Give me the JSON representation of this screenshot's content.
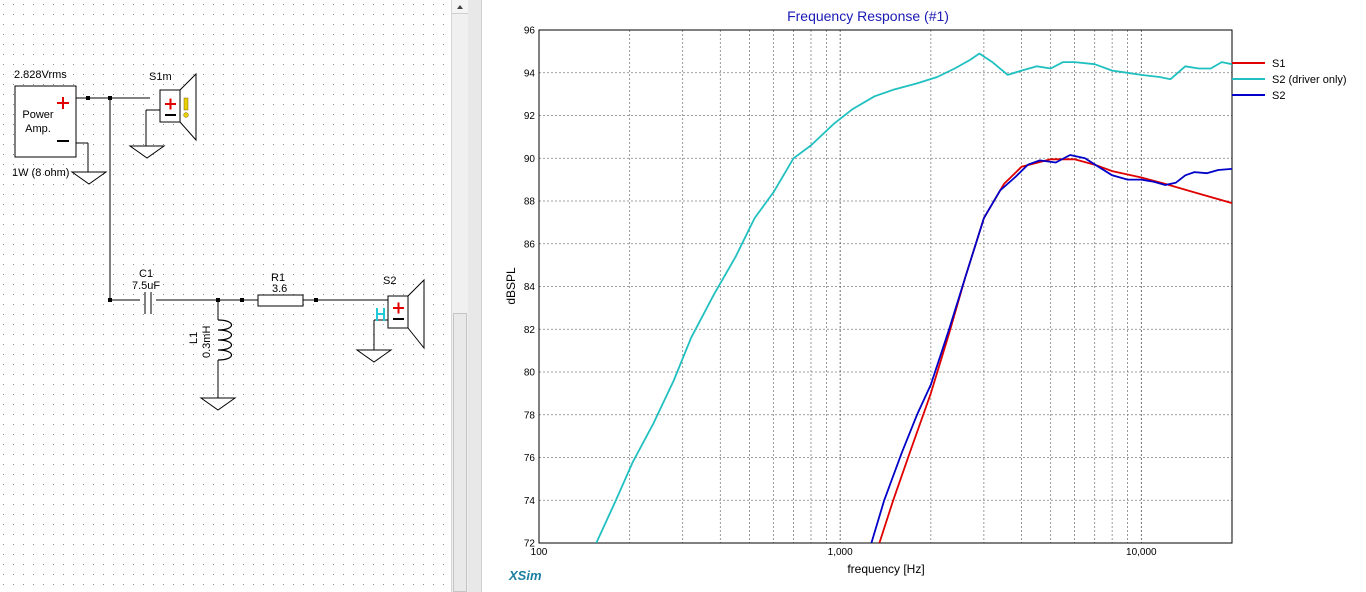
{
  "schematic": {
    "source_voltage": "2.828Vrms",
    "amp_line1": "Power",
    "amp_line2": "Amp.",
    "amp_rating": "1W (8 ohm)",
    "s1_label": "S1m",
    "s2_label": "S2",
    "c1_name": "C1",
    "c1_value": "7.5uF",
    "r1_name": "R1",
    "r1_value": "3.6",
    "l1_name": "L1",
    "l1_value": "0.3mH",
    "colors": {
      "grid_dot": "#8a8a8a",
      "wire": "#000000",
      "plus": "#e00000",
      "s2_mark": "#20c8d8",
      "s1_mark": "#e8d000"
    }
  },
  "footer": {
    "app_name": "XSim"
  },
  "chart_data": {
    "type": "line",
    "title": "Frequency Response (#1)",
    "xlabel": "frequency [Hz]",
    "ylabel": "dBSPL",
    "x_scale": "log",
    "xlim": [
      100,
      20000
    ],
    "ylim": [
      72,
      96
    ],
    "x_ticks": [
      100,
      1000,
      10000
    ],
    "x_tick_labels": [
      "100",
      "1,000",
      "10,000"
    ],
    "y_ticks": [
      72,
      74,
      76,
      78,
      80,
      82,
      84,
      86,
      88,
      90,
      92,
      94,
      96
    ],
    "y_tick_labels": [
      "72",
      "74",
      "76",
      "78",
      "80",
      "82",
      "84",
      "86",
      "88",
      "90",
      "92",
      "94",
      "96"
    ],
    "grid": true,
    "legend_position": "right",
    "series": [
      {
        "name": "S1",
        "color": "#e00000",
        "points": [
          [
            1350,
            72
          ],
          [
            1500,
            74
          ],
          [
            1700,
            76.2
          ],
          [
            2000,
            79
          ],
          [
            2300,
            81.8
          ],
          [
            2600,
            84.4
          ],
          [
            3000,
            87.2
          ],
          [
            3500,
            88.8
          ],
          [
            4000,
            89.6
          ],
          [
            5000,
            89.95
          ],
          [
            6000,
            89.95
          ],
          [
            7000,
            89.7
          ],
          [
            8000,
            89.4
          ],
          [
            10000,
            89.1
          ],
          [
            12000,
            88.8
          ],
          [
            15000,
            88.4
          ],
          [
            20000,
            87.9
          ]
        ]
      },
      {
        "name": "S2 (driver only)",
        "color": "#20c0c0",
        "points": [
          [
            155,
            72
          ],
          [
            180,
            74
          ],
          [
            205,
            75.8
          ],
          [
            240,
            77.6
          ],
          [
            280,
            79.6
          ],
          [
            320,
            81.6
          ],
          [
            380,
            83.6
          ],
          [
            450,
            85.4
          ],
          [
            520,
            87.2
          ],
          [
            600,
            88.4
          ],
          [
            700,
            90
          ],
          [
            800,
            90.6
          ],
          [
            950,
            91.6
          ],
          [
            1100,
            92.3
          ],
          [
            1300,
            92.9
          ],
          [
            1500,
            93.2
          ],
          [
            1800,
            93.5
          ],
          [
            2100,
            93.8
          ],
          [
            2400,
            94.2
          ],
          [
            2700,
            94.6
          ],
          [
            2900,
            94.9
          ],
          [
            3200,
            94.5
          ],
          [
            3600,
            93.9
          ],
          [
            4000,
            94.1
          ],
          [
            4500,
            94.3
          ],
          [
            5000,
            94.2
          ],
          [
            5500,
            94.5
          ],
          [
            6000,
            94.5
          ],
          [
            7000,
            94.4
          ],
          [
            8000,
            94.1
          ],
          [
            9000,
            94.0
          ],
          [
            10000,
            93.9
          ],
          [
            11500,
            93.8
          ],
          [
            12500,
            93.7
          ],
          [
            14000,
            94.3
          ],
          [
            15500,
            94.2
          ],
          [
            17000,
            94.2
          ],
          [
            18500,
            94.5
          ],
          [
            20000,
            94.4
          ]
        ]
      },
      {
        "name": "S2",
        "color": "#0000c8",
        "points": [
          [
            1270,
            72
          ],
          [
            1400,
            74
          ],
          [
            1600,
            76.2
          ],
          [
            1800,
            78
          ],
          [
            2000,
            79.4
          ],
          [
            2300,
            82
          ],
          [
            2600,
            84.4
          ],
          [
            3000,
            87.2
          ],
          [
            3400,
            88.5
          ],
          [
            3800,
            89.1
          ],
          [
            4200,
            89.7
          ],
          [
            4600,
            89.9
          ],
          [
            5200,
            89.8
          ],
          [
            5800,
            90.15
          ],
          [
            6500,
            90.0
          ],
          [
            7200,
            89.6
          ],
          [
            8000,
            89.2
          ],
          [
            9000,
            89.0
          ],
          [
            10000,
            89.0
          ],
          [
            11000,
            88.9
          ],
          [
            12000,
            88.75
          ],
          [
            13000,
            88.85
          ],
          [
            14000,
            89.2
          ],
          [
            15000,
            89.35
          ],
          [
            16500,
            89.3
          ],
          [
            18000,
            89.45
          ],
          [
            20000,
            89.5
          ]
        ]
      }
    ]
  }
}
